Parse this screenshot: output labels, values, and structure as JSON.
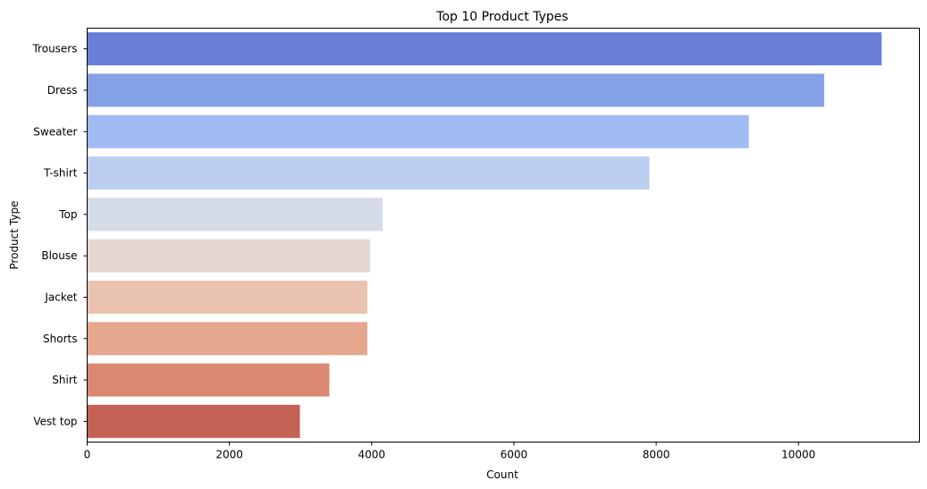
{
  "chart_data": {
    "type": "bar",
    "orientation": "horizontal",
    "title": "Top 10 Product Types",
    "xlabel": "Count",
    "ylabel": "Product Type",
    "categories": [
      "Trousers",
      "Dress",
      "Sweater",
      "T-shirt",
      "Top",
      "Blouse",
      "Jacket",
      "Shorts",
      "Shirt",
      "Vest top"
    ],
    "values": [
      11169,
      10362,
      9302,
      7904,
      4155,
      3979,
      3940,
      3939,
      3405,
      2991
    ],
    "colors": [
      "#6a80d6",
      "#86a2e6",
      "#a1bbf3",
      "#bccff1",
      "#d4dae6",
      "#e3d7cf",
      "#eac4b0",
      "#e5a78e",
      "#d98972",
      "#c46155"
    ],
    "xlim": [
      0,
      11700
    ],
    "xticks": [
      0,
      2000,
      4000,
      6000,
      8000,
      10000
    ],
    "grid": false,
    "legend": "none"
  }
}
